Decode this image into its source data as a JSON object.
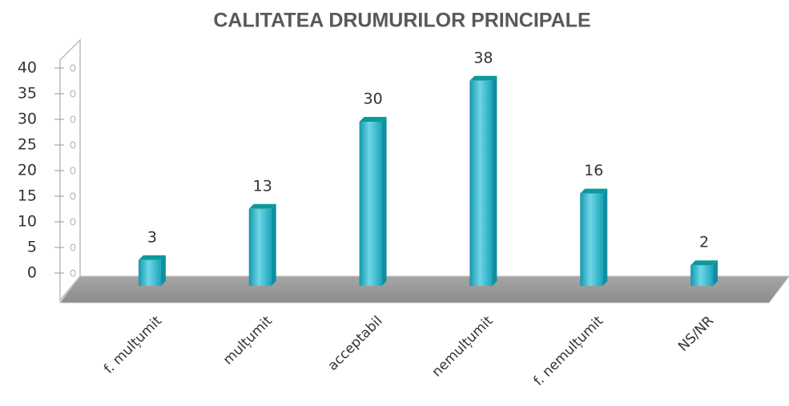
{
  "chart_data": {
    "type": "bar",
    "title": "CALITATEA DRUMURILOR PRINCIPALE",
    "categories": [
      "f. mulțumit",
      "mulțumit",
      "acceptabil",
      "nemulțumit",
      "f. nemulțumit",
      "NS/NR"
    ],
    "values": [
      3,
      13,
      30,
      38,
      16,
      2
    ],
    "color": "#29b6cc",
    "ylim": [
      0,
      40
    ],
    "yticks": [
      0,
      5,
      10,
      15,
      20,
      25,
      30,
      35,
      40
    ]
  }
}
